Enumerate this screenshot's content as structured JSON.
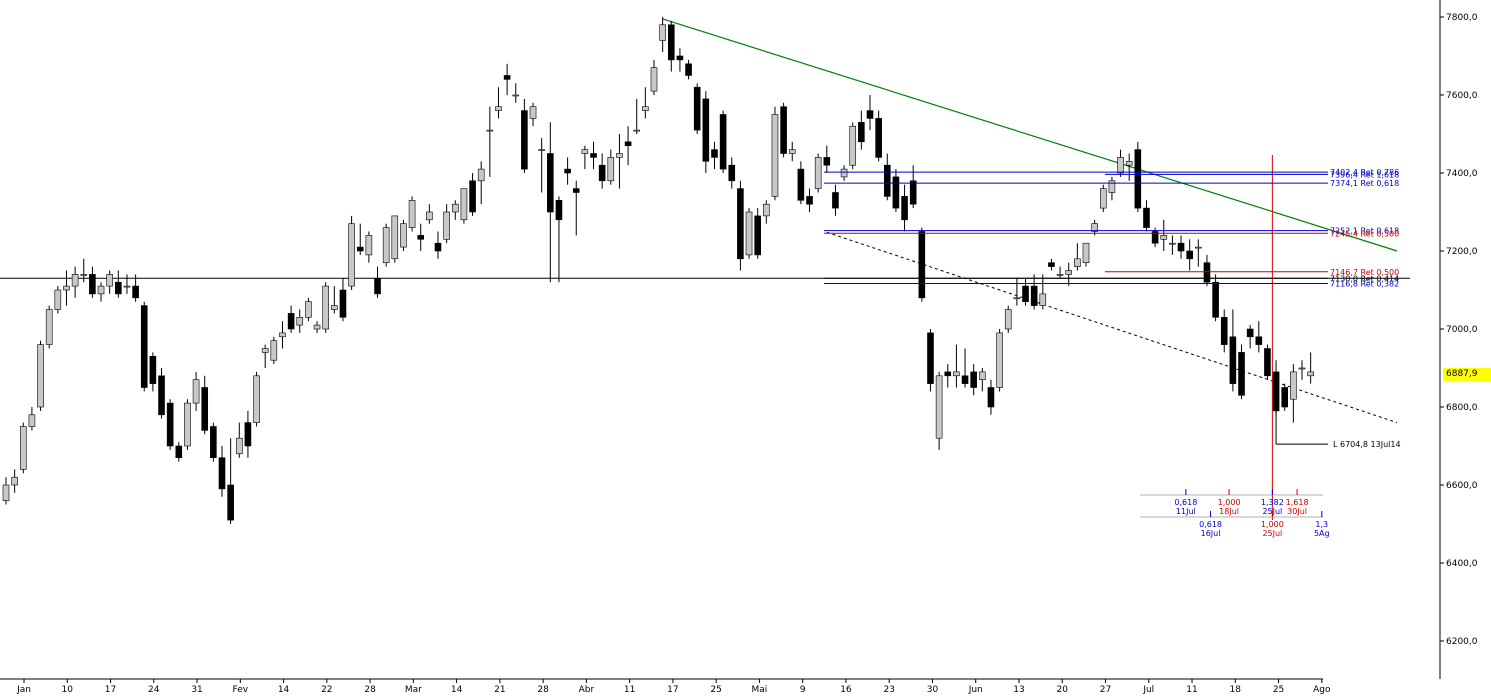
{
  "chart_data": {
    "type": "candlestick",
    "y_ticks": [
      "7800,0",
      "7600,0",
      "7400,0",
      "7200,0",
      "7000,0",
      "6800,0",
      "6600,0",
      "6400,0",
      "6200,0"
    ],
    "y_tick_values": [
      7800,
      7600,
      7400,
      7200,
      7000,
      6800,
      6600,
      6400,
      6200
    ],
    "ylim": [
      6080,
      7845
    ],
    "x_ticks": [
      {
        "label": "Jan",
        "day": 3
      },
      {
        "label": "10",
        "day": 10
      },
      {
        "label": "17",
        "day": 17
      },
      {
        "label": "24",
        "day": 24
      },
      {
        "label": "31",
        "day": 31
      },
      {
        "label": "Fev",
        "day": 38
      },
      {
        "label": "14",
        "day": 45
      },
      {
        "label": "22",
        "day": 52
      },
      {
        "label": "28",
        "day": 59
      },
      {
        "label": "Mar",
        "day": 66
      },
      {
        "label": "14",
        "day": 73
      },
      {
        "label": "21",
        "day": 80
      },
      {
        "label": "28",
        "day": 87
      },
      {
        "label": "Abr",
        "day": 94
      },
      {
        "label": "11",
        "day": 101
      },
      {
        "label": "17",
        "day": 108
      },
      {
        "label": "25",
        "day": 115
      },
      {
        "label": "Mai",
        "day": 122
      },
      {
        "label": "9",
        "day": 129
      },
      {
        "label": "16",
        "day": 136
      },
      {
        "label": "23",
        "day": 143
      },
      {
        "label": "30",
        "day": 150
      },
      {
        "label": "Jun",
        "day": 157
      },
      {
        "label": "13",
        "day": 164
      },
      {
        "label": "20",
        "day": 171
      },
      {
        "label": "27",
        "day": 178
      },
      {
        "label": "Jul",
        "day": 185
      },
      {
        "label": "11",
        "day": 192
      },
      {
        "label": "18",
        "day": 199
      },
      {
        "label": "25",
        "day": 206
      },
      {
        "label": "Ago",
        "day": 213
      }
    ],
    "last_price": "6887,9",
    "candles": [
      [
        0,
        6560,
        6620,
        6550,
        6600
      ],
      [
        1,
        6600,
        6640,
        6580,
        6620
      ],
      [
        2,
        6640,
        6760,
        6630,
        6750
      ],
      [
        3,
        6750,
        6800,
        6740,
        6780
      ],
      [
        4,
        6800,
        6970,
        6790,
        6960
      ],
      [
        5,
        6960,
        7060,
        6950,
        7050
      ],
      [
        6,
        7050,
        7110,
        7040,
        7100
      ],
      [
        7,
        7100,
        7150,
        7060,
        7110
      ],
      [
        8,
        7110,
        7160,
        7080,
        7140
      ],
      [
        9,
        7140,
        7180,
        7120,
        7140
      ],
      [
        10,
        7140,
        7160,
        7080,
        7090
      ],
      [
        11,
        7090,
        7120,
        7070,
        7110
      ],
      [
        12,
        7110,
        7150,
        7090,
        7140
      ],
      [
        13,
        7120,
        7150,
        7080,
        7090
      ],
      [
        14,
        7110,
        7140,
        7090,
        7110
      ],
      [
        15,
        7110,
        7140,
        7070,
        7080
      ],
      [
        16,
        7060,
        7070,
        6840,
        6850
      ],
      [
        17,
        6930,
        6940,
        6840,
        6860
      ],
      [
        18,
        6880,
        6900,
        6770,
        6780
      ],
      [
        19,
        6810,
        6820,
        6690,
        6700
      ],
      [
        20,
        6700,
        6710,
        6660,
        6670
      ],
      [
        21,
        6700,
        6820,
        6690,
        6810
      ],
      [
        22,
        6810,
        6890,
        6790,
        6870
      ],
      [
        23,
        6850,
        6880,
        6730,
        6740
      ],
      [
        24,
        6750,
        6760,
        6660,
        6670
      ],
      [
        25,
        6670,
        6700,
        6570,
        6590
      ],
      [
        26,
        6600,
        6720,
        6500,
        6510
      ],
      [
        27,
        6680,
        6760,
        6670,
        6720
      ],
      [
        28,
        6760,
        6790,
        6670,
        6700
      ],
      [
        29,
        6760,
        6890,
        6750,
        6880
      ],
      [
        30,
        6940,
        6960,
        6900,
        6950
      ],
      [
        31,
        6920,
        6980,
        6910,
        6970
      ],
      [
        32,
        6980,
        7020,
        6950,
        6990
      ],
      [
        33,
        7040,
        7060,
        6990,
        7000
      ],
      [
        34,
        7010,
        7050,
        6990,
        7030
      ],
      [
        35,
        7030,
        7080,
        7020,
        7070
      ],
      [
        36,
        7000,
        7020,
        6990,
        7010
      ],
      [
        37,
        7000,
        7120,
        6990,
        7110
      ],
      [
        38,
        7050,
        7110,
        7040,
        7060
      ],
      [
        39,
        7100,
        7130,
        7020,
        7030
      ],
      [
        40,
        7110,
        7290,
        7100,
        7270
      ],
      [
        41,
        7210,
        7270,
        7190,
        7200
      ],
      [
        42,
        7190,
        7250,
        7170,
        7240
      ],
      [
        43,
        7130,
        7160,
        7080,
        7090
      ],
      [
        44,
        7170,
        7270,
        7160,
        7260
      ],
      [
        45,
        7180,
        7290,
        7170,
        7290
      ],
      [
        46,
        7210,
        7280,
        7200,
        7270
      ],
      [
        47,
        7260,
        7340,
        7250,
        7330
      ],
      [
        48,
        7240,
        7270,
        7200,
        7230
      ],
      [
        49,
        7280,
        7320,
        7270,
        7300
      ],
      [
        50,
        7220,
        7250,
        7180,
        7200
      ],
      [
        51,
        7230,
        7320,
        7220,
        7300
      ],
      [
        52,
        7300,
        7330,
        7280,
        7320
      ],
      [
        53,
        7280,
        7360,
        7270,
        7360
      ],
      [
        54,
        7380,
        7400,
        7290,
        7300
      ],
      [
        55,
        7380,
        7430,
        7320,
        7410
      ],
      [
        56,
        7510,
        7570,
        7390,
        7510
      ],
      [
        57,
        7560,
        7620,
        7540,
        7570
      ],
      [
        58,
        7650,
        7680,
        7600,
        7640
      ],
      [
        59,
        7600,
        7630,
        7580,
        7600
      ],
      [
        60,
        7560,
        7590,
        7400,
        7410
      ],
      [
        61,
        7540,
        7580,
        7520,
        7570
      ],
      [
        62,
        7460,
        7490,
        7350,
        7460
      ],
      [
        63,
        7450,
        7530,
        7120,
        7300
      ],
      [
        64,
        7330,
        7340,
        7120,
        7280
      ],
      [
        65,
        7410,
        7440,
        7370,
        7400
      ],
      [
        66,
        7360,
        7380,
        7240,
        7350
      ],
      [
        67,
        7450,
        7470,
        7410,
        7460
      ],
      [
        68,
        7450,
        7480,
        7410,
        7440
      ],
      [
        69,
        7420,
        7450,
        7360,
        7380
      ],
      [
        70,
        7380,
        7460,
        7370,
        7440
      ],
      [
        71,
        7440,
        7500,
        7360,
        7450
      ],
      [
        72,
        7480,
        7520,
        7420,
        7470
      ],
      [
        73,
        7510,
        7590,
        7500,
        7510
      ],
      [
        74,
        7560,
        7620,
        7540,
        7570
      ],
      [
        75,
        7610,
        7690,
        7600,
        7670
      ],
      [
        76,
        7740,
        7800,
        7710,
        7780
      ],
      [
        77,
        7780,
        7790,
        7660,
        7690
      ],
      [
        78,
        7700,
        7720,
        7660,
        7690
      ],
      [
        79,
        7680,
        7690,
        7640,
        7650
      ],
      [
        80,
        7620,
        7630,
        7500,
        7510
      ],
      [
        81,
        7590,
        7610,
        7400,
        7430
      ],
      [
        82,
        7460,
        7480,
        7410,
        7440
      ],
      [
        83,
        7550,
        7560,
        7400,
        7410
      ],
      [
        84,
        7420,
        7440,
        7360,
        7380
      ],
      [
        85,
        7360,
        7380,
        7150,
        7180
      ],
      [
        86,
        7190,
        7310,
        7180,
        7300
      ],
      [
        87,
        7290,
        7310,
        7180,
        7190
      ],
      [
        88,
        7290,
        7330,
        7270,
        7320
      ],
      [
        89,
        7340,
        7570,
        7330,
        7550
      ],
      [
        90,
        7570,
        7580,
        7440,
        7450
      ],
      [
        91,
        7450,
        7480,
        7430,
        7460
      ],
      [
        92,
        7410,
        7430,
        7320,
        7330
      ],
      [
        93,
        7340,
        7360,
        7300,
        7320
      ],
      [
        94,
        7360,
        7450,
        7350,
        7440
      ],
      [
        95,
        7440,
        7470,
        7400,
        7420
      ],
      [
        96,
        7350,
        7370,
        7290,
        7310
      ],
      [
        97,
        7390,
        7420,
        7380,
        7410
      ],
      [
        98,
        7420,
        7530,
        7410,
        7520
      ],
      [
        99,
        7530,
        7560,
        7460,
        7480
      ],
      [
        100,
        7560,
        7600,
        7510,
        7540
      ],
      [
        101,
        7540,
        7560,
        7430,
        7440
      ],
      [
        102,
        7420,
        7450,
        7330,
        7340
      ],
      [
        103,
        7390,
        7410,
        7300,
        7310
      ],
      [
        104,
        7340,
        7370,
        7250,
        7280
      ],
      [
        105,
        7380,
        7420,
        7310,
        7320
      ],
      [
        106,
        7250,
        7260,
        7070,
        7080
      ],
      [
        107,
        6990,
        7000,
        6840,
        6860
      ],
      [
        108,
        6720,
        6890,
        6690,
        6880
      ],
      [
        109,
        6890,
        6910,
        6850,
        6880
      ],
      [
        110,
        6880,
        6960,
        6850,
        6890
      ],
      [
        111,
        6880,
        6950,
        6850,
        6860
      ],
      [
        112,
        6890,
        6910,
        6830,
        6850
      ],
      [
        113,
        6870,
        6900,
        6840,
        6890
      ],
      [
        114,
        6850,
        6870,
        6780,
        6800
      ],
      [
        115,
        6850,
        7000,
        6840,
        6990
      ],
      [
        116,
        7000,
        7060,
        6990,
        7050
      ],
      [
        117,
        7080,
        7130,
        7060,
        7080
      ],
      [
        118,
        7110,
        7130,
        7060,
        7070
      ],
      [
        119,
        7110,
        7140,
        7050,
        7060
      ],
      [
        120,
        7060,
        7140,
        7050,
        7090
      ],
      [
        121,
        7170,
        7180,
        7150,
        7160
      ],
      [
        122,
        7140,
        7160,
        7130,
        7140
      ],
      [
        123,
        7140,
        7170,
        7110,
        7150
      ],
      [
        124,
        7160,
        7220,
        7150,
        7180
      ],
      [
        125,
        7170,
        7220,
        7160,
        7220
      ],
      [
        126,
        7250,
        7280,
        7240,
        7270
      ],
      [
        127,
        7310,
        7370,
        7300,
        7360
      ],
      [
        128,
        7350,
        7390,
        7330,
        7380
      ],
      [
        129,
        7400,
        7460,
        7390,
        7440
      ],
      [
        130,
        7420,
        7450,
        7380,
        7430
      ],
      [
        131,
        7460,
        7480,
        7300,
        7310
      ],
      [
        132,
        7310,
        7330,
        7250,
        7260
      ],
      [
        133,
        7250,
        7260,
        7210,
        7220
      ],
      [
        134,
        7230,
        7280,
        7200,
        7240
      ],
      [
        135,
        7220,
        7240,
        7190,
        7220
      ],
      [
        136,
        7220,
        7240,
        7180,
        7200
      ],
      [
        137,
        7200,
        7230,
        7150,
        7180
      ],
      [
        138,
        7210,
        7230,
        7160,
        7210
      ],
      [
        139,
        7170,
        7190,
        7110,
        7120
      ],
      [
        140,
        7120,
        7140,
        7020,
        7030
      ],
      [
        141,
        7030,
        7050,
        6940,
        6960
      ],
      [
        142,
        6980,
        7050,
        6840,
        6860
      ],
      [
        143,
        6940,
        6960,
        6820,
        6830
      ],
      [
        144,
        7000,
        7010,
        6950,
        6980
      ],
      [
        145,
        6980,
        7020,
        6940,
        6960
      ],
      [
        146,
        6950,
        6960,
        6870,
        6880
      ],
      [
        147,
        6890,
        6920,
        6780,
        6790
      ],
      [
        148,
        6850,
        6860,
        6790,
        6800
      ],
      [
        149,
        6820,
        6910,
        6760,
        6890
      ],
      [
        150,
        6900,
        6920,
        6870,
        6900
      ],
      [
        151,
        6880,
        6940,
        6860,
        6890
      ]
    ],
    "lines": {
      "horizontal_support": 7130,
      "trend_green": [
        [
          76,
          7795
        ],
        [
          161,
          7200
        ]
      ],
      "trend_dashed": [
        [
          95,
          7248
        ],
        [
          161,
          6760
        ]
      ],
      "low_line": 6704.8
    },
    "levels": [
      {
        "price": 7402.4,
        "label": "7402,4 Ret 0,786",
        "color": "#0000cc"
      },
      {
        "price": 7396.4,
        "label": "7396,4 Ret 1,618",
        "color": "#0000cc"
      },
      {
        "price": 7374.1,
        "label": "7374,1 Ret 0,618",
        "color": "#0000cc"
      },
      {
        "price": 7252.1,
        "label": "7252,1 Ret 0,618",
        "color": "#0000cc"
      },
      {
        "price": 7245.4,
        "label": "7245,4 Ret 0,500",
        "color": "#cc0000"
      },
      {
        "price": 7146.7,
        "label": "7146,7 Ret 0,500",
        "color": "#cc0000"
      },
      {
        "price": 7130.0,
        "label": "7130,0 Ret 0,414",
        "color": "#000000"
      },
      {
        "price": 7116.8,
        "label": "7116,8 Ret 0,382",
        "color": "#0000cc"
      }
    ],
    "low_label": "L 6704,8 13Jul14",
    "fib_time_row1": [
      {
        "ratio": "0,618",
        "date": "11Jul",
        "color": "#0000cc",
        "day": 191
      },
      {
        "ratio": "1,000",
        "date": "18Jul",
        "color": "#cc0000",
        "day": 198
      },
      {
        "ratio": "1,382",
        "date": "25Jul",
        "color": "#0000cc",
        "day": 205
      },
      {
        "ratio": "1,618",
        "date": "30Jul",
        "color": "#cc0000",
        "day": 209
      }
    ],
    "fib_time_row2": [
      {
        "ratio": "0,618",
        "date": "16Jul",
        "color": "#0000cc",
        "day": 195
      },
      {
        "ratio": "1,000",
        "date": "25Jul",
        "color": "#cc0000",
        "day": 205
      },
      {
        "ratio": "1,3",
        "date": "5Ag",
        "color": "#0000cc",
        "day": 213
      }
    ],
    "vertical_marker_day": 205,
    "colors": {
      "up": "#c8c8c8",
      "down": "#000000",
      "green": "#008000",
      "red": "#dd0000",
      "blue": "#0000cc",
      "highlight": "#ffff00"
    }
  }
}
